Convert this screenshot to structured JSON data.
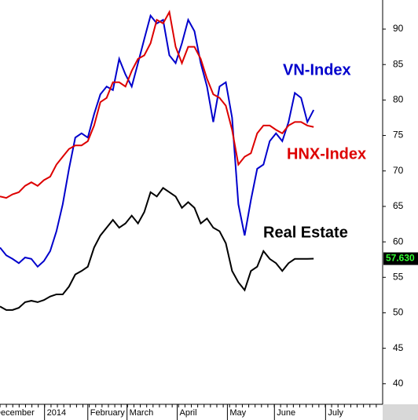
{
  "chart_data": {
    "type": "line",
    "x": [
      0,
      1,
      2,
      3,
      4,
      5,
      6,
      7,
      8,
      9,
      10,
      11,
      12,
      13,
      14,
      15,
      16,
      17,
      18,
      19,
      20,
      21,
      22,
      23,
      24,
      25,
      26,
      27,
      28,
      29,
      30,
      31,
      32,
      33,
      34,
      35,
      36,
      37,
      38,
      39,
      40,
      41,
      42,
      43,
      44,
      45,
      46,
      47,
      48,
      49,
      50
    ],
    "xlim": [
      0,
      61
    ],
    "xticks": [
      {
        "value": -1.25,
        "label": "December"
      },
      {
        "value": 7.1,
        "label": "2014"
      },
      {
        "value": 14,
        "label": "February"
      },
      {
        "value": 20.25,
        "label": "March"
      },
      {
        "value": 28.25,
        "label": "April"
      },
      {
        "value": 36.25,
        "label": "May"
      },
      {
        "value": 43.75,
        "label": "June"
      },
      {
        "value": 51.9,
        "label": "July"
      }
    ],
    "ylim": [
      37.1,
      94.1
    ],
    "yticks": [
      40,
      45,
      50,
      55,
      60,
      65,
      70,
      75,
      80,
      85,
      90
    ],
    "series": [
      {
        "name": "VN-Index",
        "color": "#0000cc",
        "values": [
          59.2,
          58.1,
          57.6,
          57.0,
          57.8,
          57.6,
          56.5,
          57.3,
          58.7,
          61.5,
          65.3,
          70.3,
          74.7,
          75.3,
          74.7,
          78.0,
          80.8,
          81.9,
          81.4,
          85.8,
          83.6,
          81.9,
          85.2,
          88.6,
          91.9,
          90.8,
          91.3,
          86.3,
          85.2,
          88.0,
          91.3,
          89.7,
          85.2,
          81.9,
          76.9,
          81.9,
          82.5,
          77.5,
          65.3,
          60.9,
          65.9,
          70.3,
          70.9,
          74.2,
          75.3,
          74.2,
          76.9,
          81.0,
          80.3,
          76.9,
          78.6
        ]
      },
      {
        "name": "HNX-Index",
        "color": "#dd0000",
        "values": [
          66.4,
          66.2,
          66.7,
          67.0,
          67.9,
          68.4,
          67.9,
          68.7,
          69.2,
          70.9,
          72.0,
          73.1,
          73.6,
          73.6,
          74.2,
          76.4,
          79.7,
          80.3,
          82.5,
          82.5,
          81.9,
          84.1,
          85.8,
          86.3,
          88.0,
          91.3,
          90.8,
          92.4,
          87.5,
          85.2,
          87.5,
          87.5,
          85.8,
          83.0,
          80.8,
          80.3,
          79.2,
          75.8,
          70.9,
          72.0,
          72.5,
          75.3,
          76.4,
          76.4,
          75.8,
          75.3,
          76.4,
          76.9,
          76.9,
          76.4,
          76.2
        ]
      },
      {
        "name": "Real Estate",
        "color": "#000000",
        "values": [
          50.9,
          50.4,
          50.4,
          50.7,
          51.5,
          51.7,
          51.5,
          51.8,
          52.3,
          52.6,
          52.6,
          53.7,
          55.4,
          55.9,
          56.5,
          59.2,
          60.9,
          62.0,
          63.1,
          62.0,
          62.6,
          63.7,
          62.6,
          64.2,
          67.0,
          66.4,
          67.6,
          67.0,
          66.4,
          64.8,
          65.6,
          64.8,
          62.6,
          63.3,
          62.0,
          61.5,
          59.8,
          55.9,
          54.3,
          53.2,
          55.9,
          56.5,
          58.7,
          57.6,
          57.0,
          55.9,
          57.0,
          57.6,
          57.6,
          57.6,
          57.63
        ]
      }
    ],
    "current_value": {
      "value": 57.63,
      "label": "57.630"
    }
  }
}
